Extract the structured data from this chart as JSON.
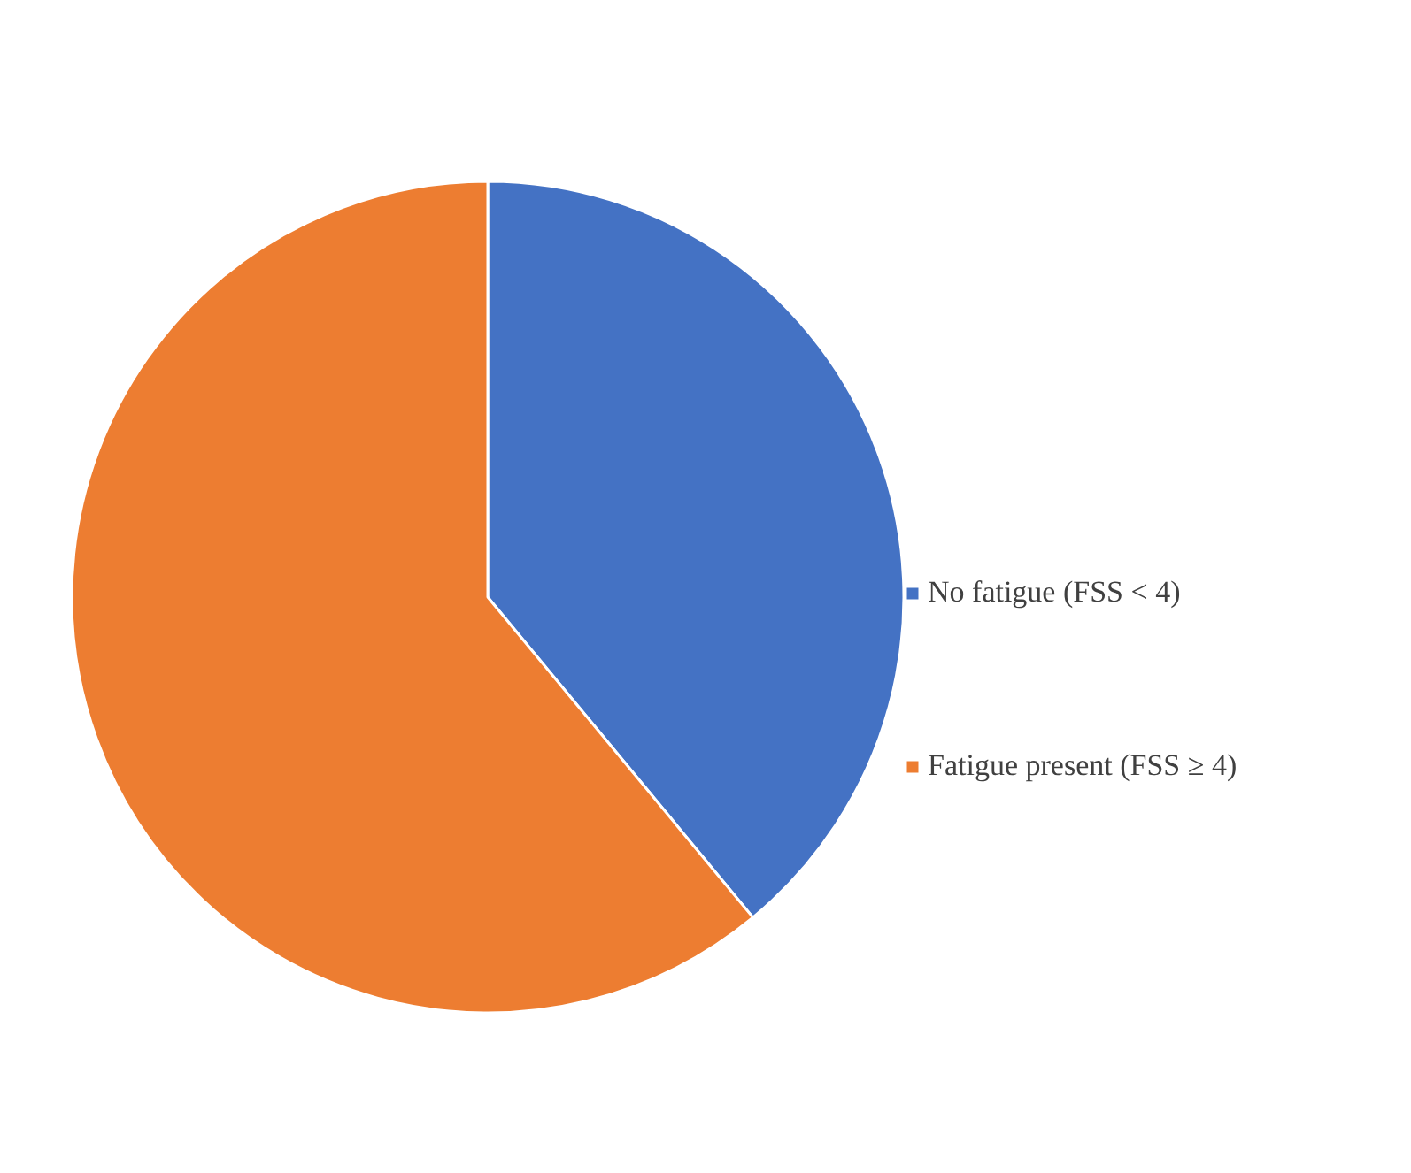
{
  "chart_data": {
    "type": "pie",
    "categories": [
      "No fatigue (FSS < 4)",
      "Fatigue present (FSS ≥ 4)"
    ],
    "values": [
      39,
      61
    ],
    "colors": [
      "#4472c4",
      "#ed7d31"
    ],
    "legend": "right"
  }
}
